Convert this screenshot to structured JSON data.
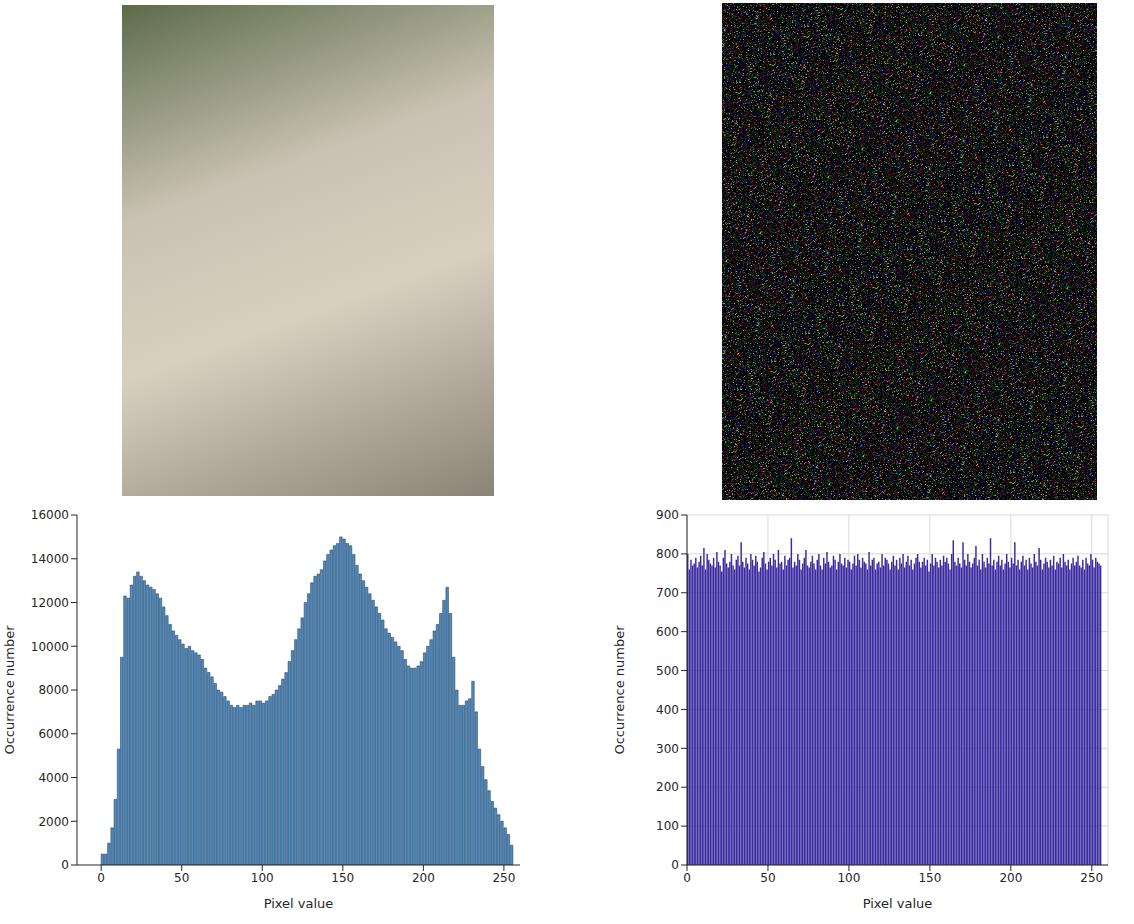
{
  "chart_data": [
    {
      "type": "histogram",
      "x_label": "Pixel value",
      "y_label": "Occurrence number",
      "color": "#4f8bbf",
      "grid": false,
      "xlim": [
        -15,
        260
      ],
      "xticks": [
        0,
        50,
        100,
        150,
        200,
        250
      ],
      "ylim": [
        0,
        16000
      ],
      "yticks": [
        0,
        2000,
        4000,
        6000,
        8000,
        10000,
        12000,
        14000,
        16000
      ],
      "bins": [
        0,
        2,
        4,
        6,
        8,
        10,
        12,
        14,
        16,
        18,
        20,
        22,
        24,
        26,
        28,
        30,
        32,
        34,
        36,
        38,
        40,
        42,
        44,
        46,
        48,
        50,
        52,
        54,
        56,
        58,
        60,
        62,
        64,
        66,
        68,
        70,
        72,
        74,
        76,
        78,
        80,
        82,
        84,
        86,
        88,
        90,
        92,
        94,
        96,
        98,
        100,
        102,
        104,
        106,
        108,
        110,
        112,
        114,
        116,
        118,
        120,
        122,
        124,
        126,
        128,
        130,
        132,
        134,
        136,
        138,
        140,
        142,
        144,
        146,
        148,
        150,
        152,
        154,
        156,
        158,
        160,
        162,
        164,
        166,
        168,
        170,
        172,
        174,
        176,
        178,
        180,
        182,
        184,
        186,
        188,
        190,
        192,
        194,
        196,
        198,
        200,
        202,
        204,
        206,
        208,
        210,
        212,
        214,
        216,
        218,
        220,
        222,
        224,
        226,
        228,
        230,
        232,
        234,
        236,
        238,
        240,
        242,
        244,
        246,
        248,
        250,
        252,
        254,
        256
      ],
      "counts": [
        500,
        500,
        1000,
        1700,
        3000,
        5300,
        9500,
        12300,
        12200,
        12800,
        13200,
        13400,
        13200,
        13000,
        12800,
        12700,
        12600,
        12400,
        12200,
        11800,
        11400,
        11000,
        10700,
        10500,
        10300,
        10100,
        9900,
        10000,
        9800,
        9700,
        9600,
        9400,
        9000,
        8800,
        8600,
        8300,
        8000,
        7900,
        7700,
        7500,
        7300,
        7200,
        7300,
        7200,
        7300,
        7300,
        7400,
        7300,
        7500,
        7500,
        7400,
        7500,
        7700,
        7800,
        8000,
        8200,
        8500,
        8800,
        9300,
        9800,
        10300,
        10800,
        11300,
        12000,
        12400,
        12900,
        13200,
        13300,
        13500,
        13900,
        14200,
        14400,
        14600,
        14700,
        15000,
        14900,
        14700,
        14600,
        14200,
        13700,
        13300,
        13000,
        12700,
        12400,
        12100,
        11800,
        11500,
        11200,
        10800,
        10600,
        10400,
        10200,
        10000,
        9800,
        9400,
        9100,
        9000,
        9000,
        9100,
        9300,
        9700,
        10000,
        10300,
        10700,
        11000,
        11500,
        12100,
        12700,
        11500,
        9500,
        8000,
        7300,
        7300,
        7500,
        7600,
        8400,
        7000,
        5300,
        4500,
        3900,
        3400,
        2900,
        2600,
        2300,
        2000,
        1700,
        1400,
        900
      ]
    },
    {
      "type": "histogram",
      "x_label": "Pixel value",
      "y_label": "Occurrence number",
      "color": "#3a2aa0",
      "grid": true,
      "xlim": [
        0,
        260
      ],
      "xticks": [
        0,
        50,
        100,
        150,
        200,
        250
      ],
      "ylim": [
        0,
        900
      ],
      "yticks": [
        0,
        100,
        200,
        300,
        400,
        500,
        600,
        700,
        800,
        900
      ],
      "bins": [
        0,
        1,
        2,
        3,
        4,
        5,
        6,
        7,
        8,
        9,
        10,
        11,
        12,
        13,
        14,
        15,
        16,
        17,
        18,
        19,
        20,
        21,
        22,
        23,
        24,
        25,
        26,
        27,
        28,
        29,
        30,
        31,
        32,
        33,
        34,
        35,
        36,
        37,
        38,
        39,
        40,
        41,
        42,
        43,
        44,
        45,
        46,
        47,
        48,
        49,
        50,
        51,
        52,
        53,
        54,
        55,
        56,
        57,
        58,
        59,
        60,
        61,
        62,
        63,
        64,
        65,
        66,
        67,
        68,
        69,
        70,
        71,
        72,
        73,
        74,
        75,
        76,
        77,
        78,
        79,
        80,
        81,
        82,
        83,
        84,
        85,
        86,
        87,
        88,
        89,
        90,
        91,
        92,
        93,
        94,
        95,
        96,
        97,
        98,
        99,
        100,
        101,
        102,
        103,
        104,
        105,
        106,
        107,
        108,
        109,
        110,
        111,
        112,
        113,
        114,
        115,
        116,
        117,
        118,
        119,
        120,
        121,
        122,
        123,
        124,
        125,
        126,
        127,
        128,
        129,
        130,
        131,
        132,
        133,
        134,
        135,
        136,
        137,
        138,
        139,
        140,
        141,
        142,
        143,
        144,
        145,
        146,
        147,
        148,
        149,
        150,
        151,
        152,
        153,
        154,
        155,
        156,
        157,
        158,
        159,
        160,
        161,
        162,
        163,
        164,
        165,
        166,
        167,
        168,
        169,
        170,
        171,
        172,
        173,
        174,
        175,
        176,
        177,
        178,
        179,
        180,
        181,
        182,
        183,
        184,
        185,
        186,
        187,
        188,
        189,
        190,
        191,
        192,
        193,
        194,
        195,
        196,
        197,
        198,
        199,
        200,
        201,
        202,
        203,
        204,
        205,
        206,
        207,
        208,
        209,
        210,
        211,
        212,
        213,
        214,
        215,
        216,
        217,
        218,
        219,
        220,
        221,
        222,
        223,
        224,
        225,
        226,
        227,
        228,
        229,
        230,
        231,
        232,
        233,
        234,
        235,
        236,
        237,
        238,
        239,
        240,
        241,
        242,
        243,
        244,
        245,
        246,
        247,
        248,
        249,
        250,
        251,
        252,
        253,
        254,
        255,
        256
      ],
      "counts": [
        800,
        760,
        785,
        770,
        775,
        790,
        765,
        780,
        795,
        770,
        815,
        760,
        800,
        785,
        775,
        770,
        790,
        765,
        805,
        780,
        770,
        755,
        790,
        810,
        775,
        765,
        780,
        800,
        770,
        760,
        785,
        795,
        770,
        830,
        780,
        765,
        790,
        775,
        760,
        800,
        785,
        770,
        795,
        780,
        755,
        765,
        790,
        805,
        775,
        760,
        780,
        790,
        770,
        800,
        785,
        765,
        810,
        775,
        780,
        760,
        795,
        770,
        785,
        790,
        840,
        765,
        780,
        770,
        800,
        785,
        760,
        775,
        790,
        810,
        770,
        765,
        780,
        795,
        775,
        760,
        785,
        800,
        770,
        760,
        790,
        775,
        805,
        780,
        765,
        770,
        795,
        785,
        760,
        780,
        800,
        775,
        770,
        790,
        765,
        785,
        780,
        760,
        775,
        795,
        770,
        800,
        785,
        765,
        790,
        780,
        775,
        760,
        805,
        770,
        785,
        790,
        760,
        775,
        780,
        765,
        800,
        770,
        790,
        785,
        775,
        760,
        780,
        795,
        770,
        785,
        760,
        790,
        775,
        800,
        765,
        780,
        795,
        770,
        785,
        760,
        775,
        790,
        800,
        780,
        765,
        780,
        790,
        770,
        785,
        755,
        775,
        800,
        770,
        790,
        780,
        765,
        785,
        770,
        795,
        780,
        790,
        775,
        760,
        800,
        835,
        780,
        770,
        790,
        775,
        765,
        830,
        785,
        770,
        800,
        780,
        765,
        775,
        790,
        820,
        770,
        785,
        760,
        800,
        780,
        765,
        790,
        775,
        840,
        770,
        785,
        760,
        780,
        795,
        770,
        785,
        760,
        775,
        800,
        780,
        765,
        790,
        775,
        830,
        770,
        785,
        760,
        780,
        795,
        770,
        785,
        760,
        790,
        775,
        765,
        800,
        780,
        770,
        815,
        785,
        760,
        775,
        790,
        780,
        765,
        785,
        770,
        795,
        760,
        780,
        775,
        790,
        765,
        800,
        780,
        770,
        785,
        760,
        775,
        790,
        770,
        780,
        795,
        770,
        765,
        785,
        760,
        790,
        775,
        770,
        800,
        785,
        765,
        790,
        780,
        775,
        770
      ]
    }
  ]
}
